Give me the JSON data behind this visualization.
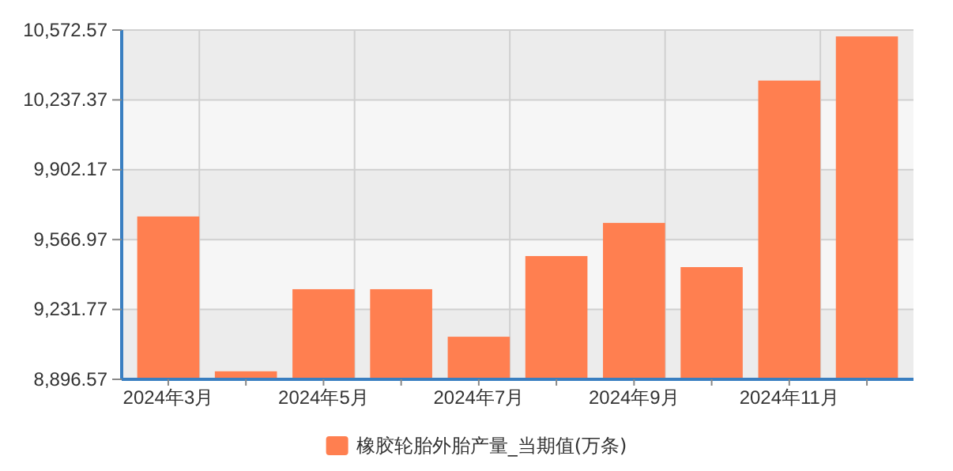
{
  "chart_data": {
    "type": "bar",
    "categories": [
      "2024年3月",
      null,
      "2024年5月",
      null,
      "2024年7月",
      null,
      "2024年9月",
      null,
      "2024年11月",
      null
    ],
    "series": [
      {
        "name": "橡胶轮胎外胎产量_当期值(万条)",
        "color": "#ff7f50",
        "values": [
          9678,
          8935,
          9329,
          9329,
          9101,
          9488,
          9647,
          9435,
          10330,
          10542
        ]
      }
    ],
    "ylim": [
      8896.57,
      10572.57
    ],
    "yticks": [
      {
        "value": 8896.57,
        "label": "8,896.57"
      },
      {
        "value": 9231.77,
        "label": "9,231.77"
      },
      {
        "value": 9566.97,
        "label": "9,566.97"
      },
      {
        "value": 9902.17,
        "label": "9,902.17"
      },
      {
        "value": 10237.37,
        "label": "10,237.37"
      },
      {
        "value": 10572.57,
        "label": "10,572.57"
      }
    ],
    "grid": true,
    "legend": "bottom"
  }
}
